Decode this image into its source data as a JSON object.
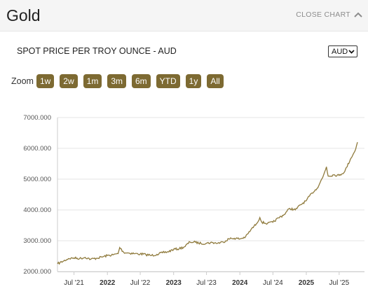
{
  "header": {
    "title": "Gold",
    "close_label": "CLOSE CHART"
  },
  "subtitle": "SPOT PRICE PER TROY OUNCE - AUD",
  "currency": {
    "selected": "AUD"
  },
  "zoom": {
    "label": "Zoom",
    "buttons": [
      "1w",
      "2w",
      "1m",
      "3m",
      "6m",
      "YTD",
      "1y",
      "All"
    ]
  },
  "colors": {
    "accent": "#7d6a32",
    "line": "#8f7a3c",
    "grid": "#e6e6e6"
  },
  "chart_data": {
    "type": "line",
    "title": "",
    "xlabel": "",
    "ylabel": "",
    "x_range": [
      "2021-04-01",
      "2025-10-10"
    ],
    "ylim": [
      2000,
      7000
    ],
    "y_ticks": [
      "2000.000",
      "3000.000",
      "4000.000",
      "5000.000",
      "6000.000",
      "7000.000"
    ],
    "x_ticks": [
      {
        "label": "Jul '21",
        "date": "2021-07-01",
        "bold": false
      },
      {
        "label": "2022",
        "date": "2022-01-01",
        "bold": true
      },
      {
        "label": "Jul '22",
        "date": "2022-07-01",
        "bold": false
      },
      {
        "label": "2023",
        "date": "2023-01-01",
        "bold": true
      },
      {
        "label": "Jul '23",
        "date": "2023-07-01",
        "bold": false
      },
      {
        "label": "2024",
        "date": "2024-01-01",
        "bold": true
      },
      {
        "label": "Jul '24",
        "date": "2024-07-01",
        "bold": false
      },
      {
        "label": "2025",
        "date": "2025-01-01",
        "bold": true
      },
      {
        "label": "Jul '25",
        "date": "2025-07-01",
        "bold": false
      }
    ],
    "grid": true,
    "series": [
      {
        "points": [
          [
            "2021-04-01",
            2250
          ],
          [
            "2021-05-01",
            2330
          ],
          [
            "2021-06-01",
            2420
          ],
          [
            "2021-07-01",
            2440
          ],
          [
            "2021-08-01",
            2420
          ],
          [
            "2021-09-01",
            2460
          ],
          [
            "2021-10-01",
            2400
          ],
          [
            "2021-11-01",
            2430
          ],
          [
            "2021-12-01",
            2470
          ],
          [
            "2022-01-01",
            2520
          ],
          [
            "2022-02-01",
            2540
          ],
          [
            "2022-03-01",
            2580
          ],
          [
            "2022-03-10",
            2780
          ],
          [
            "2022-04-01",
            2620
          ],
          [
            "2022-05-01",
            2600
          ],
          [
            "2022-06-01",
            2580
          ],
          [
            "2022-07-01",
            2570
          ],
          [
            "2022-08-01",
            2550
          ],
          [
            "2022-09-01",
            2520
          ],
          [
            "2022-10-01",
            2560
          ],
          [
            "2022-11-01",
            2610
          ],
          [
            "2022-12-01",
            2640
          ],
          [
            "2023-01-01",
            2720
          ],
          [
            "2023-02-01",
            2740
          ],
          [
            "2023-03-01",
            2800
          ],
          [
            "2023-04-01",
            2960
          ],
          [
            "2023-05-01",
            2950
          ],
          [
            "2023-06-01",
            2910
          ],
          [
            "2023-07-01",
            2920
          ],
          [
            "2023-08-01",
            2940
          ],
          [
            "2023-09-01",
            2920
          ],
          [
            "2023-10-01",
            2960
          ],
          [
            "2023-11-01",
            3060
          ],
          [
            "2023-12-01",
            3080
          ],
          [
            "2024-01-01",
            3060
          ],
          [
            "2024-02-01",
            3120
          ],
          [
            "2024-03-01",
            3350
          ],
          [
            "2024-04-01",
            3550
          ],
          [
            "2024-04-20",
            3750
          ],
          [
            "2024-05-01",
            3600
          ],
          [
            "2024-06-01",
            3560
          ],
          [
            "2024-07-01",
            3600
          ],
          [
            "2024-08-01",
            3740
          ],
          [
            "2024-09-01",
            3850
          ],
          [
            "2024-10-01",
            4050
          ],
          [
            "2024-11-01",
            4000
          ],
          [
            "2024-12-01",
            4170
          ],
          [
            "2025-01-01",
            4300
          ],
          [
            "2025-02-01",
            4550
          ],
          [
            "2025-03-01",
            4700
          ],
          [
            "2025-04-01",
            5050
          ],
          [
            "2025-04-22",
            5400
          ],
          [
            "2025-05-01",
            5100
          ],
          [
            "2025-06-01",
            5140
          ],
          [
            "2025-07-01",
            5120
          ],
          [
            "2025-08-01",
            5250
          ],
          [
            "2025-09-01",
            5650
          ],
          [
            "2025-09-25",
            5900
          ],
          [
            "2025-10-10",
            6200
          ]
        ]
      }
    ]
  }
}
